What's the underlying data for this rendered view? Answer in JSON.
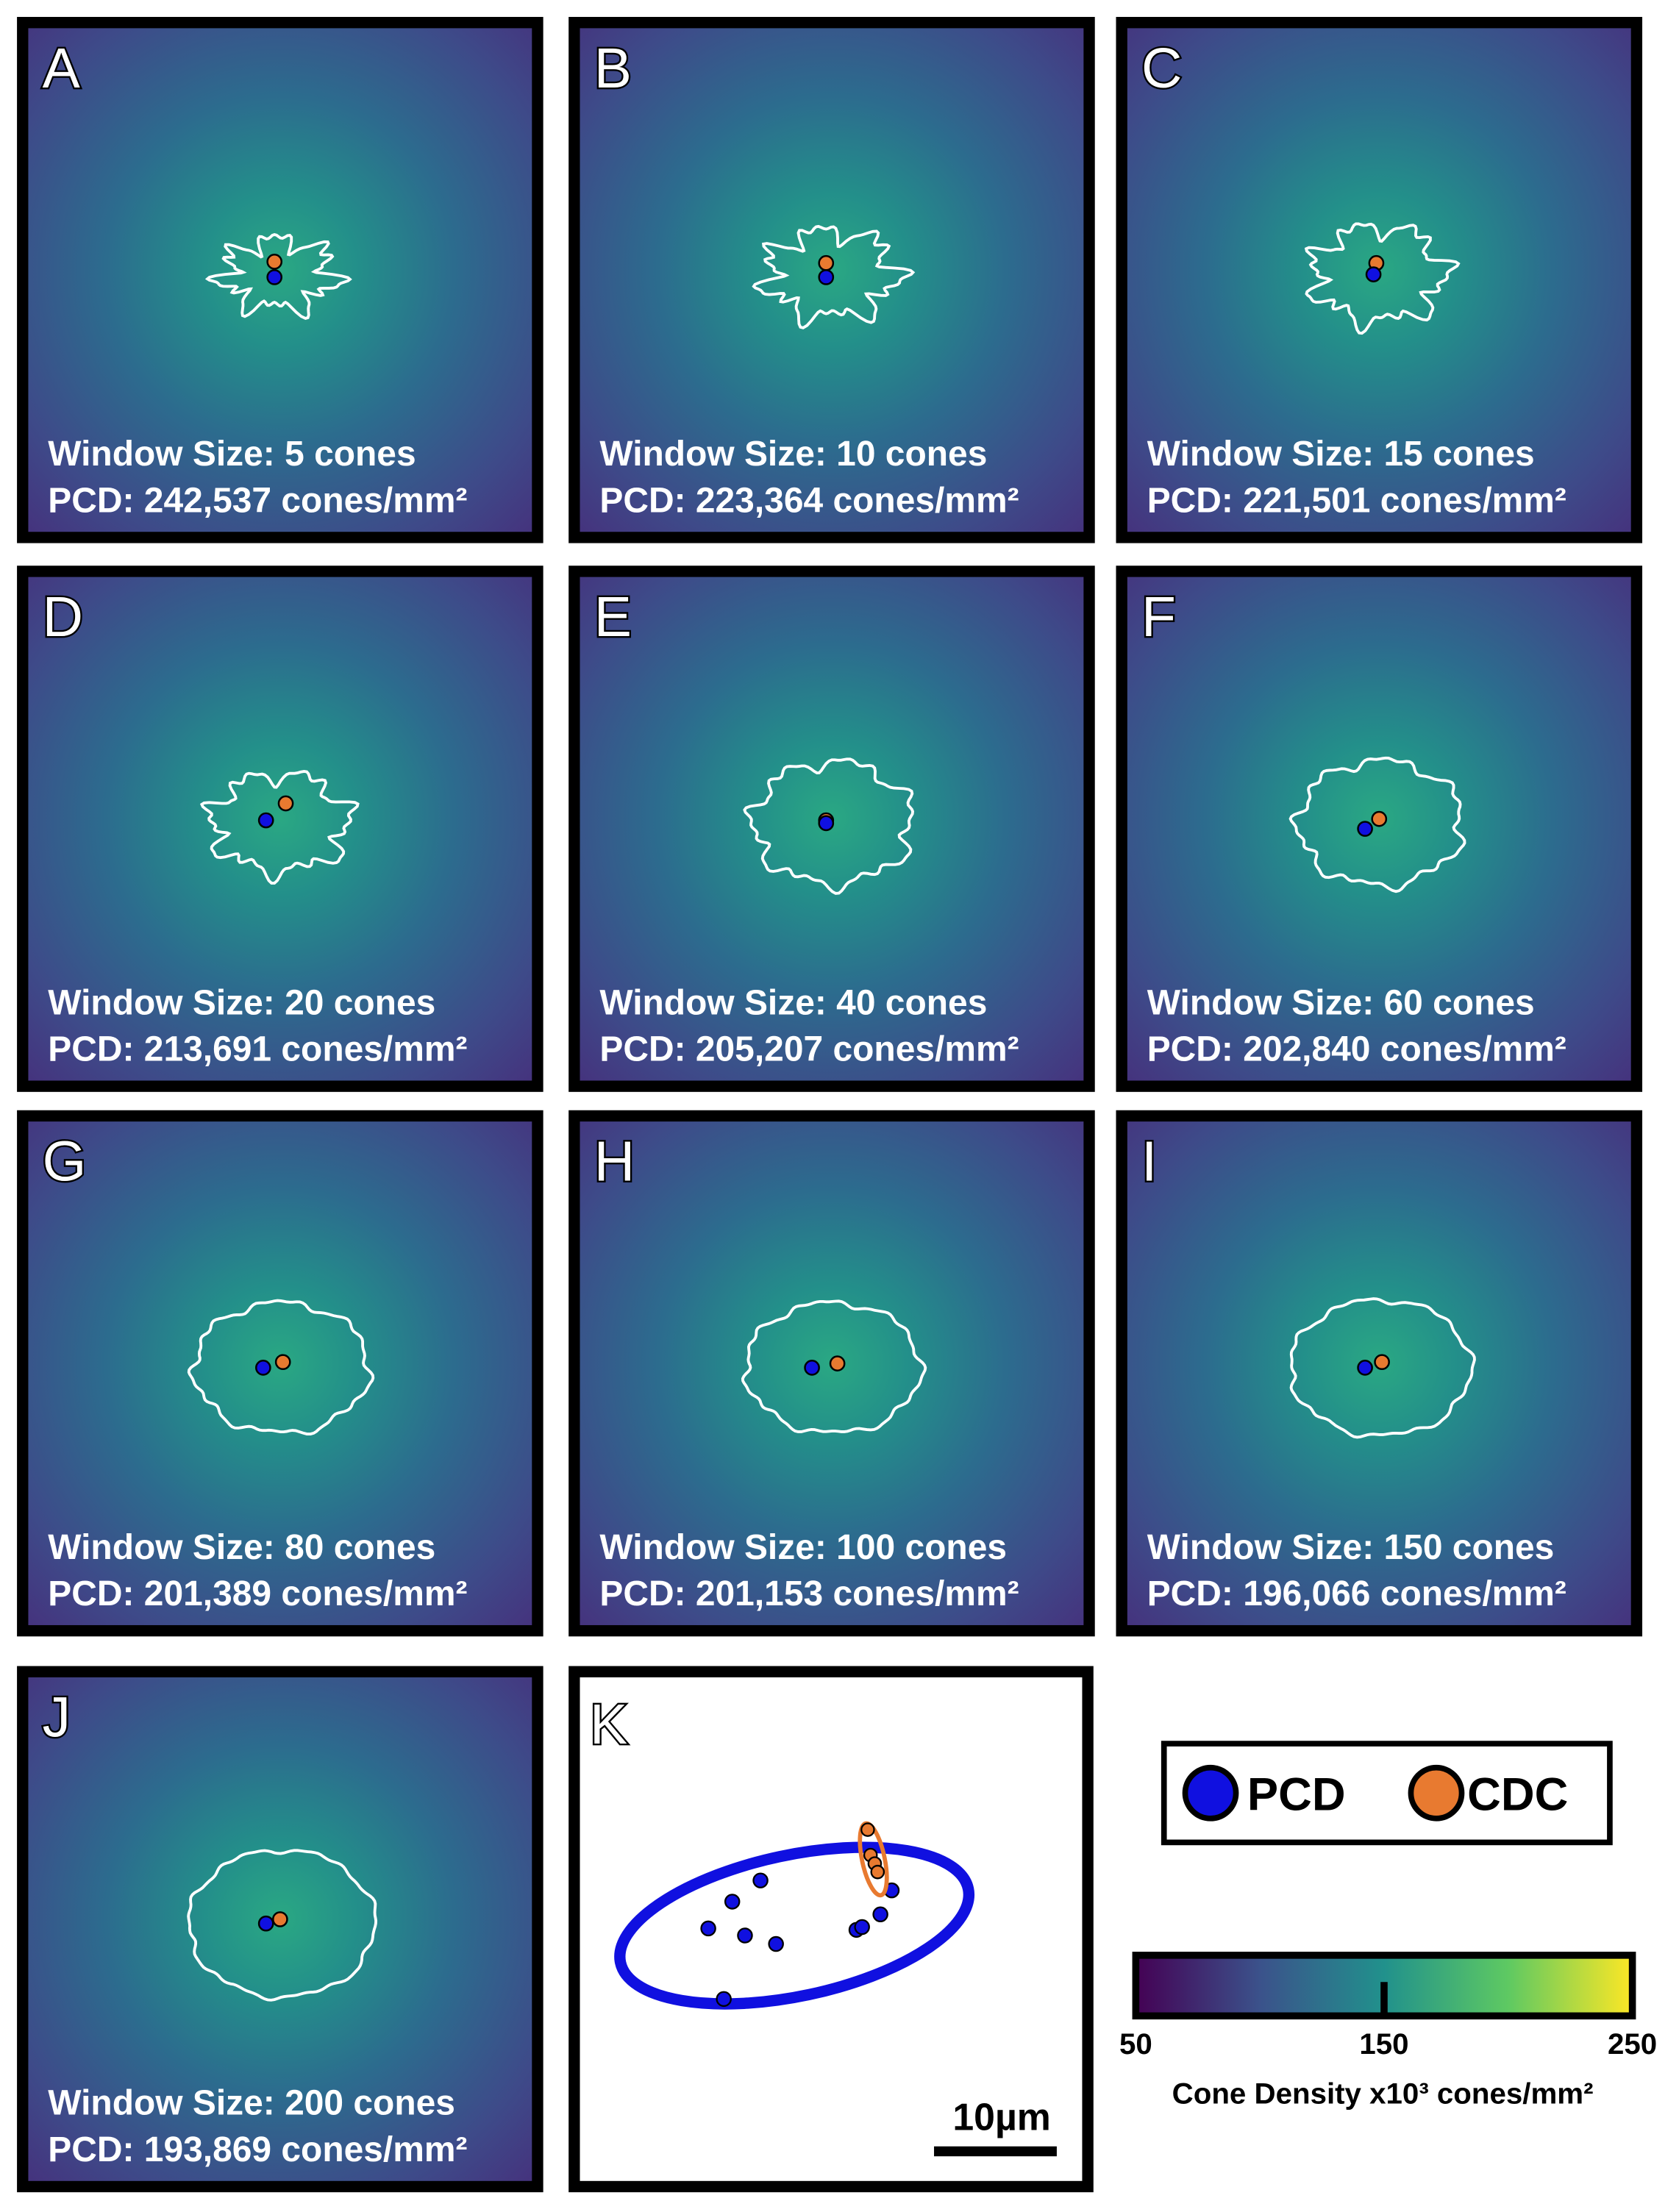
{
  "panels": [
    {
      "letter": "A",
      "window": "Window Size: 5 cones",
      "pcd": "PCD: 242,537 cones/mm²"
    },
    {
      "letter": "B",
      "window": "Window Size: 10 cones",
      "pcd": "PCD: 223,364 cones/mm²"
    },
    {
      "letter": "C",
      "window": "Window Size: 15 cones",
      "pcd": "PCD: 221,501 cones/mm²"
    },
    {
      "letter": "D",
      "window": "Window Size: 20 cones",
      "pcd": "PCD: 213,691 cones/mm²"
    },
    {
      "letter": "E",
      "window": "Window Size: 40 cones",
      "pcd": "PCD: 205,207 cones/mm²"
    },
    {
      "letter": "F",
      "window": "Window Size: 60 cones",
      "pcd": "PCD: 202,840 cones/mm²"
    },
    {
      "letter": "G",
      "window": "Window Size: 80 cones",
      "pcd": "PCD: 201,389 cones/mm²"
    },
    {
      "letter": "H",
      "window": "Window Size: 100 cones",
      "pcd": "PCD: 201,153 cones/mm²"
    },
    {
      "letter": "I",
      "window": "Window Size: 150 cones",
      "pcd": "PCD: 196,066 cones/mm²"
    },
    {
      "letter": "J",
      "window": "Window Size: 200 cones",
      "pcd": "PCD: 193,869 cones/mm²"
    }
  ],
  "panel_k": {
    "letter": "K",
    "scale_bar": "10µm"
  },
  "legend": {
    "items": [
      "PCD",
      "CDC"
    ]
  },
  "colorbar": {
    "ticks": [
      50,
      150,
      250
    ],
    "label": "Cone Density x10³ cones/mm²"
  }
}
